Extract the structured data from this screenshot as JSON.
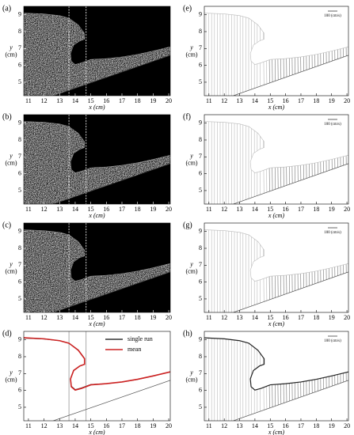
{
  "chart_data": [
    {
      "type": "image",
      "panel_label": "(a)",
      "xlabel": "x (cm)",
      "ylabel": [
        "y",
        "(cm)"
      ],
      "xlim": [
        10.7,
        20.1
      ],
      "ylim": [
        4.2,
        9.5
      ],
      "xticks": [
        11,
        12,
        13,
        14,
        15,
        16,
        17,
        18,
        19,
        20
      ],
      "yticks": [
        5,
        6,
        7,
        8,
        9
      ],
      "vlines": [
        13.6,
        14.7
      ],
      "surface": {
        "x": [
          10.7,
          12,
          13,
          13.6,
          14.2,
          14.6,
          14.6,
          14.3,
          13.9,
          13.7,
          13.75,
          14,
          14.4,
          15,
          16,
          17,
          18,
          19,
          20.1
        ],
        "y": [
          9.1,
          9.05,
          8.95,
          8.8,
          8.4,
          7.9,
          7.55,
          7.45,
          7.2,
          6.7,
          6.25,
          6.05,
          6.15,
          6.35,
          6.4,
          6.5,
          6.65,
          6.85,
          7.1
        ]
      },
      "bed": {
        "x": [
          12.6,
          20.1
        ],
        "y": [
          4.2,
          6.6
        ]
      }
    },
    {
      "type": "image",
      "panel_label": "(b)",
      "xlabel": "x (cm)",
      "ylabel": [
        "y",
        "(cm)"
      ],
      "xlim": [
        10.7,
        20.1
      ],
      "ylim": [
        4.2,
        9.5
      ],
      "xticks": [
        11,
        12,
        13,
        14,
        15,
        16,
        17,
        18,
        19,
        20
      ],
      "yticks": [
        5,
        6,
        7,
        8,
        9
      ],
      "vlines": [
        13.6,
        14.7
      ],
      "surface": {
        "x": [
          10.7,
          12,
          13,
          13.6,
          14.2,
          14.6,
          14.6,
          14.3,
          13.9,
          13.7,
          13.75,
          14,
          14.4,
          15,
          16,
          17,
          18,
          19,
          20.1
        ],
        "y": [
          9.1,
          9.05,
          8.95,
          8.8,
          8.4,
          7.9,
          7.55,
          7.45,
          7.2,
          6.7,
          6.25,
          6.05,
          6.15,
          6.35,
          6.4,
          6.5,
          6.65,
          6.85,
          7.1
        ]
      },
      "bed": {
        "x": [
          12.6,
          20.1
        ],
        "y": [
          4.2,
          6.6
        ]
      }
    },
    {
      "type": "image",
      "panel_label": "(c)",
      "xlabel": "x (cm)",
      "ylabel": [
        "y",
        "(cm)"
      ],
      "xlim": [
        10.7,
        20.1
      ],
      "ylim": [
        4.2,
        9.5
      ],
      "xticks": [
        11,
        12,
        13,
        14,
        15,
        16,
        17,
        18,
        19,
        20
      ],
      "yticks": [
        5,
        6,
        7,
        8,
        9
      ],
      "vlines": [
        13.6,
        14.7
      ],
      "surface": {
        "x": [
          10.7,
          12,
          13,
          13.6,
          14.2,
          14.6,
          14.6,
          14.3,
          13.9,
          13.7,
          13.75,
          14,
          14.4,
          15,
          16,
          17,
          18,
          19,
          20.1
        ],
        "y": [
          9.1,
          9.05,
          8.95,
          8.8,
          8.4,
          7.9,
          7.55,
          7.45,
          7.2,
          6.7,
          6.25,
          6.05,
          6.15,
          6.35,
          6.4,
          6.5,
          6.65,
          6.85,
          7.1
        ]
      },
      "bed": {
        "x": [
          12.6,
          20.1
        ],
        "y": [
          4.2,
          6.6
        ]
      }
    },
    {
      "type": "line",
      "panel_label": "(d)",
      "xlabel": "x (cm)",
      "ylabel": [
        "y",
        "(cm)"
      ],
      "xlim": [
        10.7,
        20.1
      ],
      "ylim": [
        4.2,
        9.5
      ],
      "xticks": [
        11,
        12,
        13,
        14,
        15,
        16,
        17,
        18,
        19,
        20
      ],
      "yticks": [
        5,
        6,
        7,
        8,
        9
      ],
      "vlines": [
        13.6,
        14.7
      ],
      "legend": "upper right",
      "x": [
        10.7,
        12,
        13,
        13.6,
        14.2,
        14.6,
        14.6,
        14.3,
        13.9,
        13.7,
        13.75,
        14,
        14.4,
        15,
        16,
        17,
        18,
        19,
        20.1
      ],
      "series": [
        {
          "name": "single run",
          "color": "#333333",
          "values": [
            9.1,
            9.05,
            8.95,
            8.8,
            8.4,
            7.9,
            7.55,
            7.45,
            7.2,
            6.7,
            6.25,
            6.05,
            6.15,
            6.35,
            6.4,
            6.5,
            6.65,
            6.85,
            7.1
          ]
        },
        {
          "name": "mean",
          "color": "#cc2222",
          "values": [
            9.12,
            9.06,
            8.95,
            8.8,
            8.38,
            7.88,
            7.55,
            7.45,
            7.18,
            6.68,
            6.22,
            6.02,
            6.12,
            6.33,
            6.4,
            6.5,
            6.66,
            6.86,
            7.1
          ]
        }
      ],
      "bed": {
        "x": [
          12.6,
          20.1
        ],
        "y": [
          4.2,
          6.6
        ]
      }
    },
    {
      "type": "vector",
      "panel_label": "(e)",
      "xlabel": "x (cm)",
      "ylabel": [
        "y",
        "(cm)"
      ],
      "scale_label": "100 (cm/s)",
      "xlim": [
        10.7,
        20.1
      ],
      "ylim": [
        4.2,
        9.5
      ],
      "xticks": [
        11,
        12,
        13,
        14,
        15,
        16,
        17,
        18,
        19,
        20
      ],
      "yticks": [
        5,
        6,
        7,
        8,
        9
      ],
      "surface": {
        "x": [
          10.7,
          12,
          13,
          13.6,
          14.2,
          14.6,
          14.6,
          14.3,
          13.9,
          13.7,
          13.75,
          14,
          14.4,
          15,
          16,
          17,
          18,
          19,
          20.1
        ],
        "y": [
          9.1,
          9.05,
          8.95,
          8.8,
          8.4,
          7.9,
          7.55,
          7.45,
          7.2,
          6.7,
          6.25,
          6.05,
          6.15,
          6.35,
          6.4,
          6.5,
          6.65,
          6.85,
          7.1
        ]
      },
      "bed": {
        "x": [
          12.6,
          20.1
        ],
        "y": [
          4.2,
          6.6
        ]
      }
    },
    {
      "type": "vector",
      "panel_label": "(f)",
      "xlabel": "x (cm)",
      "ylabel": [
        "y",
        "(cm)"
      ],
      "scale_label": "100 (cm/s)",
      "xlim": [
        10.7,
        20.1
      ],
      "ylim": [
        4.2,
        9.5
      ],
      "xticks": [
        11,
        12,
        13,
        14,
        15,
        16,
        17,
        18,
        19,
        20
      ],
      "yticks": [
        5,
        6,
        7,
        8,
        9
      ],
      "surface": {
        "x": [
          10.7,
          12,
          13,
          13.6,
          14.2,
          14.6,
          14.6,
          14.3,
          13.9,
          13.7,
          13.75,
          14,
          14.4,
          15,
          16,
          17,
          18,
          19,
          20.1
        ],
        "y": [
          9.1,
          9.05,
          8.95,
          8.8,
          8.4,
          7.9,
          7.55,
          7.45,
          7.2,
          6.7,
          6.25,
          6.05,
          6.15,
          6.35,
          6.4,
          6.5,
          6.65,
          6.85,
          7.1
        ]
      },
      "bed": {
        "x": [
          12.6,
          20.1
        ],
        "y": [
          4.2,
          6.6
        ]
      }
    },
    {
      "type": "vector",
      "panel_label": "(g)",
      "xlabel": "x (cm)",
      "ylabel": [
        "y",
        "(cm)"
      ],
      "scale_label": "100 (cm/s)",
      "xlim": [
        10.7,
        20.1
      ],
      "ylim": [
        4.2,
        9.5
      ],
      "xticks": [
        11,
        12,
        13,
        14,
        15,
        16,
        17,
        18,
        19,
        20
      ],
      "yticks": [
        5,
        6,
        7,
        8,
        9
      ],
      "surface": {
        "x": [
          10.7,
          12,
          13,
          13.6,
          14.2,
          14.6,
          14.6,
          14.3,
          13.9,
          13.7,
          13.75,
          14,
          14.4,
          15,
          16,
          17,
          18,
          19,
          20.1
        ],
        "y": [
          9.1,
          9.05,
          8.95,
          8.8,
          8.4,
          7.9,
          7.55,
          7.45,
          7.2,
          6.7,
          6.25,
          6.05,
          6.15,
          6.35,
          6.4,
          6.5,
          6.65,
          6.85,
          7.1
        ]
      },
      "bed": {
        "x": [
          12.6,
          20.1
        ],
        "y": [
          4.2,
          6.6
        ]
      }
    },
    {
      "type": "vector",
      "panel_label": "(h)",
      "xlabel": "x (cm)",
      "ylabel": [
        "y",
        "(cm)"
      ],
      "scale_label": "100 (cm/s)",
      "outline_color": "#222222",
      "xlim": [
        10.7,
        20.1
      ],
      "ylim": [
        4.2,
        9.5
      ],
      "xticks": [
        11,
        12,
        13,
        14,
        15,
        16,
        17,
        18,
        19,
        20
      ],
      "yticks": [
        5,
        6,
        7,
        8,
        9
      ],
      "surface": {
        "x": [
          10.7,
          12,
          13,
          13.6,
          14.2,
          14.6,
          14.6,
          14.3,
          13.9,
          13.7,
          13.75,
          14,
          14.4,
          15,
          16,
          17,
          18,
          19,
          20.1
        ],
        "y": [
          9.12,
          9.06,
          8.95,
          8.8,
          8.38,
          7.88,
          7.55,
          7.45,
          7.18,
          6.68,
          6.22,
          6.02,
          6.12,
          6.33,
          6.4,
          6.5,
          6.66,
          6.86,
          7.1
        ]
      },
      "bed": {
        "x": [
          12.6,
          20.1
        ],
        "y": [
          4.2,
          6.6
        ]
      }
    }
  ]
}
